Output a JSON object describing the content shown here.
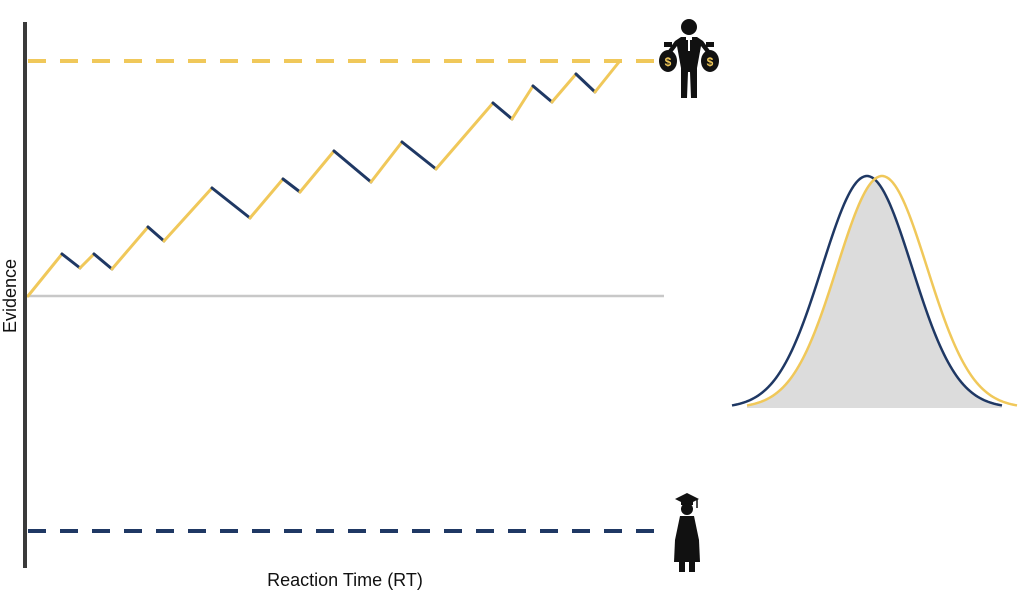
{
  "axes": {
    "y_label": "Evidence",
    "x_label": "Reaction Time (RT)"
  },
  "colors": {
    "upper_boundary": "#f0c85a",
    "lower_boundary": "#1f3864",
    "axis": "#3a3a3a",
    "start_line": "#c8c8c8",
    "distribution_fill": "#dcdcdc",
    "icon": "#111111",
    "money_sign": "#f0c85a"
  },
  "icons": {
    "upper": "businessman-with-money-bags-icon",
    "lower": "graduate-in-gown-icon"
  },
  "evidence_path": [
    {
      "t": 0,
      "e": 0,
      "c": "gold"
    },
    {
      "t": 34,
      "e": 42,
      "c": "gold"
    },
    {
      "t": 52,
      "e": 28,
      "c": "navy"
    },
    {
      "t": 66,
      "e": 42,
      "c": "gold"
    },
    {
      "t": 84,
      "e": 27,
      "c": "navy"
    },
    {
      "t": 120,
      "e": 69,
      "c": "gold"
    },
    {
      "t": 136,
      "e": 55,
      "c": "navy"
    },
    {
      "t": 184,
      "e": 108,
      "c": "gold"
    },
    {
      "t": 222,
      "e": 78,
      "c": "navy"
    },
    {
      "t": 255,
      "e": 117,
      "c": "gold"
    },
    {
      "t": 272,
      "e": 104,
      "c": "navy"
    },
    {
      "t": 306,
      "e": 145,
      "c": "gold"
    },
    {
      "t": 343,
      "e": 114,
      "c": "navy"
    },
    {
      "t": 374,
      "e": 154,
      "c": "gold"
    },
    {
      "t": 408,
      "e": 127,
      "c": "navy"
    },
    {
      "t": 465,
      "e": 193,
      "c": "gold"
    },
    {
      "t": 484,
      "e": 177,
      "c": "navy"
    },
    {
      "t": 505,
      "e": 210,
      "c": "gold"
    },
    {
      "t": 524,
      "e": 194,
      "c": "navy"
    },
    {
      "t": 548,
      "e": 222,
      "c": "gold"
    },
    {
      "t": 567,
      "e": 204,
      "c": "navy"
    },
    {
      "t": 591,
      "e": 234,
      "c": "gold"
    }
  ],
  "distributions": [
    {
      "name": "navy",
      "mean": 867,
      "sd": 45
    },
    {
      "name": "gold",
      "mean": 882,
      "sd": 45
    }
  ]
}
